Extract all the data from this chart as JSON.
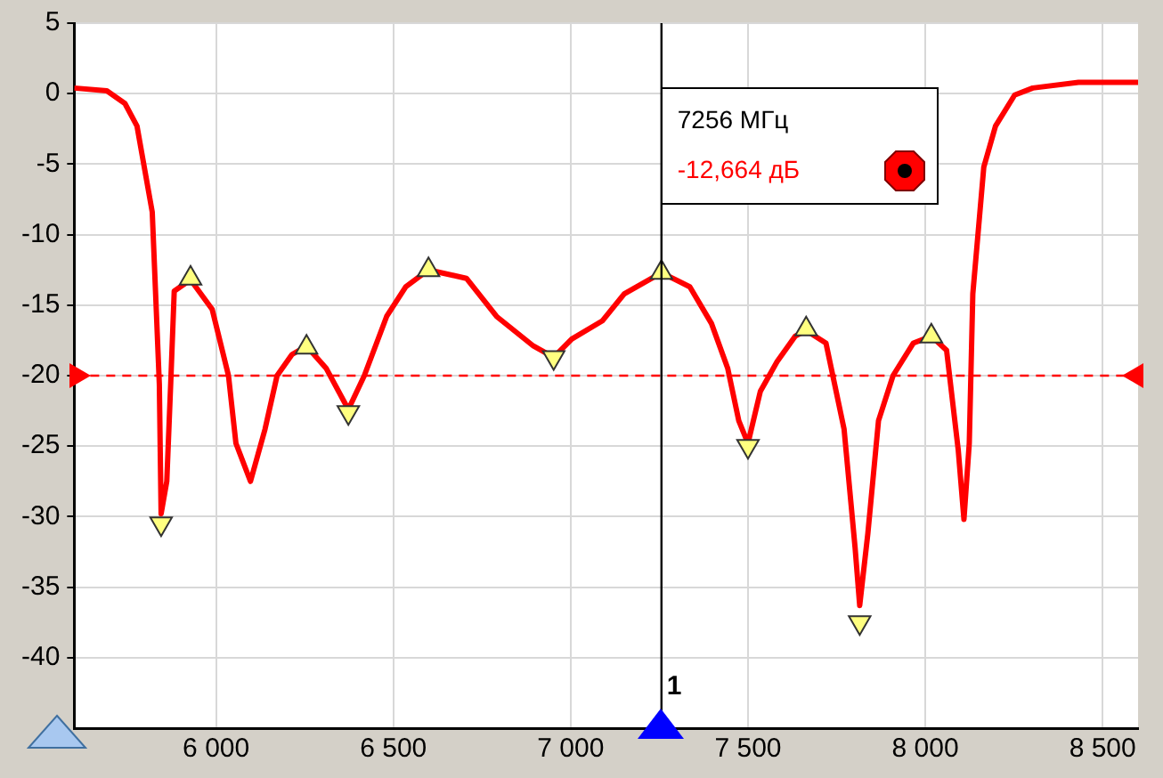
{
  "chart_data": {
    "type": "line",
    "xlim": [
      5600,
      8600
    ],
    "ylim": [
      -45,
      5
    ],
    "xticks": [
      {
        "value": 6000,
        "label": "6 000"
      },
      {
        "value": 6500,
        "label": "6 500"
      },
      {
        "value": 7000,
        "label": "7 000"
      },
      {
        "value": 7500,
        "label": "7 500"
      },
      {
        "value": 8000,
        "label": "8 000"
      },
      {
        "value": 8500,
        "label": "8 500"
      }
    ],
    "yticks": [
      5,
      0,
      -5,
      -10,
      -15,
      -20,
      -25,
      -30,
      -35,
      -40
    ],
    "grid": true,
    "legend": false,
    "line_style": "solid",
    "series": [
      {
        "color": "#ff0000",
        "marker": "none",
        "x": [
          5600,
          5692,
          5743,
          5777,
          5820,
          5840,
          5845,
          5861,
          5872,
          5882,
          5928,
          5989,
          6035,
          6056,
          6097,
          6138,
          6172,
          6214,
          6255,
          6311,
          6373,
          6418,
          6481,
          6535,
          6599,
          6706,
          6791,
          6895,
          6952,
          7003,
          7090,
          7151,
          7256,
          7336,
          7397,
          7443,
          7474,
          7500,
          7535,
          7582,
          7633,
          7664,
          7720,
          7771,
          7802,
          7815,
          7838,
          7868,
          7909,
          7966,
          8017,
          8060,
          8093,
          8109,
          8124,
          8134,
          8165,
          8198,
          8252,
          8303,
          8432,
          8583,
          8600
        ],
        "values": [
          0.4,
          0.2,
          -0.7,
          -2.3,
          -8.4,
          -20.6,
          -29.8,
          -27.5,
          -20.6,
          -14,
          -13.2,
          -15.3,
          -20,
          -24.8,
          -27.5,
          -23.8,
          -20,
          -18.5,
          -17.9,
          -19.5,
          -22.4,
          -20,
          -15.8,
          -13.7,
          -12.5,
          -13.1,
          -15.8,
          -17.9,
          -18.7,
          -17.4,
          -16.1,
          -14.2,
          -12.7,
          -13.7,
          -16.3,
          -19.5,
          -23.2,
          -24.8,
          -21.1,
          -19,
          -17.2,
          -16.8,
          -17.7,
          -23.8,
          -32.2,
          -36.3,
          -31.2,
          -23.2,
          -20,
          -17.7,
          -17.2,
          -18.2,
          -25.3,
          -30.2,
          -24.8,
          -14.2,
          -5.2,
          -2.3,
          -0.1,
          0.4,
          0.8,
          0.8,
          0.8
        ]
      },
      {
        "type": "scatter",
        "color": "#ffff80",
        "marker": "triangle",
        "x": [
          5928,
          6255,
          6599,
          7256,
          7664,
          8017
        ],
        "values": [
          -13.1,
          -18,
          -12.5,
          -12.7,
          -16.7,
          -17.2
        ]
      },
      {
        "type": "scatter",
        "color": "#ffff80",
        "marker": "triangle",
        "x": [
          5845,
          6373,
          6952,
          7500,
          7815
        ],
        "values": [
          -30.5,
          -22.6,
          -18.7,
          -25,
          -37.5
        ]
      }
    ],
    "ref_lines": [
      {
        "axis": "y",
        "value": -20,
        "color": "#ff0000",
        "line_style": "dashed"
      },
      {
        "axis": "x",
        "value": 7256,
        "color": "#000000",
        "line_style": "solid"
      }
    ],
    "annotations": [
      "1",
      "7256 МГц",
      "-12,664 дБ"
    ]
  }
}
